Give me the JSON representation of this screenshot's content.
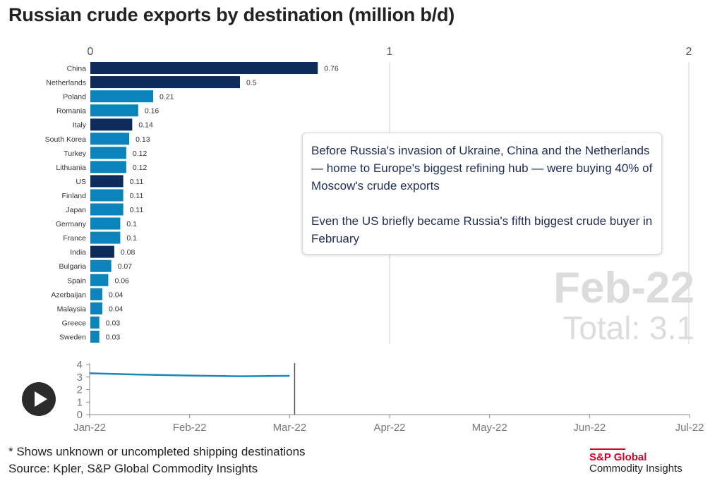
{
  "title": "Russian crude exports by destination (million b/d)",
  "chart_data": [
    {
      "type": "bar",
      "orientation": "horizontal",
      "categories": [
        "China",
        "Netherlands",
        "Poland",
        "Romania",
        "Italy",
        "South Korea",
        "Turkey",
        "Lithuania",
        "US",
        "Finland",
        "Japan",
        "Germany",
        "France",
        "India",
        "Bulgaria",
        "Spain",
        "Azerbaijan",
        "Malaysia",
        "Greece",
        "Sweden"
      ],
      "values": [
        0.76,
        0.5,
        0.21,
        0.16,
        0.14,
        0.13,
        0.12,
        0.12,
        0.11,
        0.11,
        0.11,
        0.1,
        0.1,
        0.08,
        0.07,
        0.06,
        0.04,
        0.04,
        0.03,
        0.03
      ],
      "value_labels": [
        "0.76",
        "0.5",
        "0.21",
        "0.16",
        "0.14",
        "0.13",
        "0.12",
        "0.12",
        "0.11",
        "0.11",
        "0.11",
        "0.1",
        "0.1",
        "0.08",
        "0.07",
        "0.06",
        "0.04",
        "0.04",
        "0.03",
        "0.03"
      ],
      "highlighted": [
        "China",
        "Netherlands",
        "Italy",
        "US",
        "India"
      ],
      "xlim": [
        0,
        2
      ],
      "x_ticks": [
        "0",
        "1",
        "2"
      ],
      "grid": true
    },
    {
      "type": "line",
      "x_ticks": [
        "Jan-22",
        "Feb-22",
        "Mar-22",
        "Apr-22",
        "May-22",
        "Jun-22",
        "Jul-22"
      ],
      "y_ticks": [
        "0",
        "1",
        "2",
        "3",
        "4"
      ],
      "ylim": [
        0,
        4
      ],
      "xlim": [
        0,
        6
      ],
      "series": [
        {
          "name": "Total",
          "x": [
            0,
            0.5,
            1,
            1.5,
            2
          ],
          "values": [
            3.3,
            3.2,
            3.12,
            3.06,
            3.1
          ]
        }
      ],
      "current_x": 2.05
    }
  ],
  "colors": {
    "highlight": "#0d2b5c",
    "bar": "#0b83bb",
    "line": "#1a87b9",
    "grid": "#cccccc",
    "axis": "#888888"
  },
  "annotation": {
    "paragraph1": "Before Russia's invasion of Ukraine, China and the Netherlands — home to Europe's biggest refining hub — were buying 40% of Moscow's crude exports",
    "paragraph2": "Even the US briefly became Russia's fifth biggest crude buyer in February"
  },
  "period": "Feb-22",
  "total": "Total: 3.1",
  "play_icon": "play-icon",
  "footnote": "* Shows unknown or uncompleted shipping destinations",
  "source": "Source: Kpler, S&P Global Commodity Insights",
  "logo": {
    "line1": "S&P Global",
    "line2": "Commodity Insights"
  }
}
